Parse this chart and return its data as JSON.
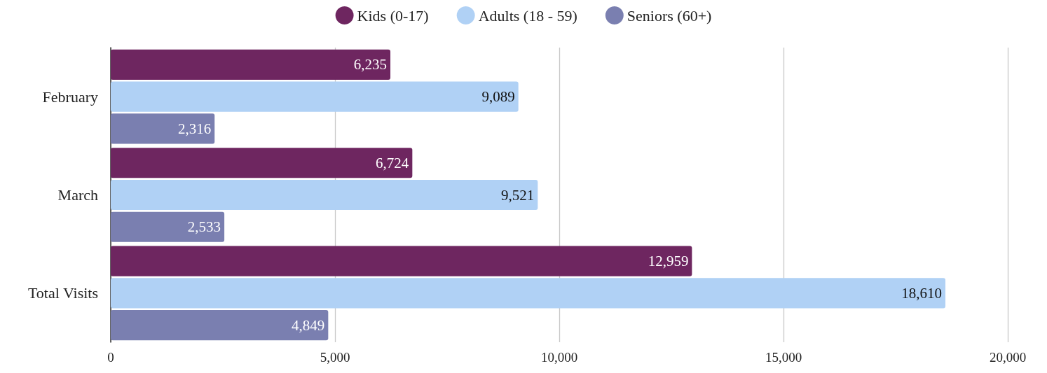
{
  "chart_data": {
    "type": "bar",
    "orientation": "horizontal",
    "categories": [
      "February",
      "March",
      "Total Visits"
    ],
    "series": [
      {
        "name": "Kids (0-17)",
        "color": "#6e2660",
        "values": [
          6235,
          6724,
          12959
        ],
        "value_labels": [
          "6,235",
          "6,724",
          "12,959"
        ]
      },
      {
        "name": "Adults (18 - 59)",
        "color": "#b0d1f5",
        "values": [
          9089,
          9521,
          18610
        ],
        "value_labels": [
          "9,089",
          "9,521",
          "18,610"
        ]
      },
      {
        "name": "Seniors (60+)",
        "color": "#7a7fb0",
        "values": [
          2316,
          2533,
          4849
        ],
        "value_labels": [
          "2,316",
          "2,533",
          "4,849"
        ]
      }
    ],
    "xlim": [
      0,
      20000
    ],
    "xticks": [
      0,
      {
        "value": 5000,
        "label": "5,000"
      },
      {
        "value": 10000,
        "label": "10,000"
      },
      {
        "value": 15000,
        "label": "15,000"
      },
      {
        "value": 20000,
        "label": "20,000"
      }
    ],
    "grid": "x",
    "legend": "top"
  }
}
